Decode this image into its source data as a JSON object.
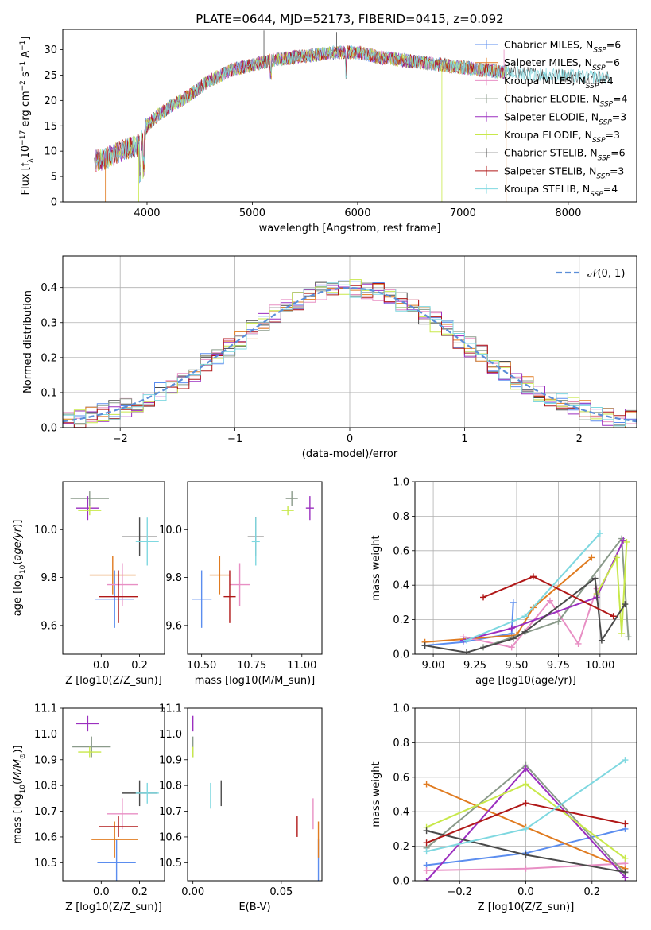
{
  "colors": [
    "#5b8def",
    "#e07b20",
    "#e88fc4",
    "#8a9a8a",
    "#9b2fbf",
    "#c8e84a",
    "#4a4a4a",
    "#b01818",
    "#7fd8e0"
  ],
  "chart_data": [
    {
      "id": "spectrum",
      "type": "line",
      "title": "PLATE=0644, MJD=52173, FIBERID=0415, z=0.092",
      "xlabel": "wavelength [Angstrom, rest frame]",
      "ylabel": "Flux [f_λ 10^-17 erg cm^-2 s^-1 A^-1]",
      "xlim": [
        3200,
        8650
      ],
      "ylim": [
        0,
        34
      ],
      "xticks": [
        4000,
        5000,
        6000,
        7000,
        8000
      ],
      "yticks": [
        0,
        5,
        10,
        15,
        20,
        25,
        30
      ],
      "grid": false,
      "legend_position": "top-right",
      "series": [
        {
          "name": "Chabrier MILES, N_SSP=6"
        },
        {
          "name": "Salpeter MILES, N_SSP=6"
        },
        {
          "name": "Kroupa MILES, N_SSP=4"
        },
        {
          "name": "Chabrier ELODIE, N_SSP=4"
        },
        {
          "name": "Salpeter ELODIE, N_SSP=3"
        },
        {
          "name": "Kroupa ELODIE, N_SSP=3"
        },
        {
          "name": "Chabrier STELIB, N_SSP=6"
        },
        {
          "name": "Salpeter STELIB, N_SSP=3"
        },
        {
          "name": "Kroupa STELIB, N_SSP=4"
        }
      ],
      "continuum": {
        "x": [
          3500,
          3600,
          3700,
          3800,
          3900,
          3950,
          4000,
          4100,
          4200,
          4400,
          4600,
          4800,
          5000,
          5200,
          5400,
          5600,
          5800,
          6000,
          6200,
          6400,
          6600,
          6800,
          7000,
          7200,
          7400
        ],
        "y": [
          8,
          8.5,
          9.5,
          10.5,
          11,
          12,
          15,
          17,
          18.5,
          21,
          24,
          26,
          27,
          28,
          28.5,
          29,
          29.5,
          29.5,
          28.5,
          28,
          27.5,
          27,
          26.5,
          26,
          25.5
        ]
      }
    },
    {
      "id": "histogram",
      "type": "bar",
      "xlabel": "(data-model)/error",
      "ylabel": "Normed distribution",
      "xlim": [
        -2.5,
        2.5
      ],
      "ylim": [
        0,
        0.49
      ],
      "xticks": [
        -2,
        -1,
        0,
        1,
        2
      ],
      "yticks": [
        0.0,
        0.1,
        0.2,
        0.3,
        0.4
      ],
      "grid": true,
      "legend_position": "top-right",
      "reference_curve": {
        "name": "N(0,1)",
        "mean": 0,
        "sigma": 1
      },
      "bin_width": 0.1
    },
    {
      "id": "age-vs-Z",
      "type": "scatter",
      "xlabel": "Z [log10(Z/Z_sun)]",
      "ylabel": "age [log10(age/yr)]",
      "xlim": [
        -0.2,
        0.33
      ],
      "ylim": [
        9.48,
        10.2
      ],
      "xticks": [
        0.0,
        0.2
      ],
      "yticks": [
        9.6,
        9.8,
        10.0
      ],
      "points": [
        {
          "x": 0.07,
          "y": 9.71,
          "xerr": 0.1,
          "yerr": 0.12
        },
        {
          "x": 0.06,
          "y": 9.81,
          "xerr": 0.12,
          "yerr": 0.08
        },
        {
          "x": 0.11,
          "y": 9.77,
          "xerr": 0.08,
          "yerr": 0.09
        },
        {
          "x": -0.06,
          "y": 10.13,
          "xerr": 0.1,
          "yerr": 0.03
        },
        {
          "x": -0.07,
          "y": 10.09,
          "xerr": 0.06,
          "yerr": 0.05
        },
        {
          "x": -0.06,
          "y": 10.08,
          "xerr": 0.06,
          "yerr": 0.02
        },
        {
          "x": 0.2,
          "y": 9.97,
          "xerr": 0.09,
          "yerr": 0.08
        },
        {
          "x": 0.09,
          "y": 9.72,
          "xerr": 0.1,
          "yerr": 0.11
        },
        {
          "x": 0.24,
          "y": 9.95,
          "xerr": 0.06,
          "yerr": 0.1
        }
      ]
    },
    {
      "id": "age-vs-mass",
      "type": "scatter",
      "xlabel": "mass [log10(M/M_sun)]",
      "ylabel": "",
      "xlim": [
        10.43,
        11.1
      ],
      "ylim": [
        9.48,
        10.2
      ],
      "xticks": [
        10.5,
        10.75,
        11.0
      ],
      "yticks": [
        9.6,
        9.8,
        10.0
      ],
      "points": [
        {
          "x": 10.5,
          "y": 9.71,
          "xerr": 0.05,
          "yerr": 0.12
        },
        {
          "x": 10.59,
          "y": 9.81,
          "xerr": 0.05,
          "yerr": 0.08
        },
        {
          "x": 10.69,
          "y": 9.77,
          "xerr": 0.05,
          "yerr": 0.09
        },
        {
          "x": 10.95,
          "y": 10.13,
          "xerr": 0.03,
          "yerr": 0.03
        },
        {
          "x": 11.04,
          "y": 10.09,
          "xerr": 0.02,
          "yerr": 0.05
        },
        {
          "x": 10.93,
          "y": 10.08,
          "xerr": 0.03,
          "yerr": 0.02
        },
        {
          "x": 10.77,
          "y": 9.97,
          "xerr": 0.04,
          "yerr": 0.08
        },
        {
          "x": 10.64,
          "y": 9.72,
          "xerr": 0.03,
          "yerr": 0.11
        },
        {
          "x": 10.77,
          "y": 9.95,
          "xerr": 0.02,
          "yerr": 0.1
        }
      ]
    },
    {
      "id": "weight-vs-age",
      "type": "line",
      "xlabel": "age [log10(age/yr)]",
      "ylabel": "mass weight",
      "xlim": [
        8.89,
        10.22
      ],
      "ylim": [
        0,
        1
      ],
      "xticks": [
        9.0,
        9.25,
        9.5,
        9.75,
        10.0
      ],
      "yticks": [
        0.0,
        0.2,
        0.4,
        0.6,
        0.8,
        1.0
      ],
      "grid": true,
      "series": [
        {
          "x": [
            8.95,
            9.18,
            9.47,
            9.48
          ],
          "y": [
            0.05,
            0.07,
            0.12,
            0.3
          ]
        },
        {
          "x": [
            8.95,
            9.5,
            9.6,
            9.95
          ],
          "y": [
            0.07,
            0.11,
            0.27,
            0.56
          ]
        },
        {
          "x": [
            9.18,
            9.47,
            9.7,
            9.87,
            9.98
          ],
          "y": [
            0.1,
            0.04,
            0.31,
            0.06,
            0.38
          ]
        },
        {
          "x": [
            9.3,
            9.75,
            10.13,
            10.17
          ],
          "y": [
            0.04,
            0.19,
            0.67,
            0.1
          ]
        },
        {
          "x": [
            9.18,
            9.47,
            9.98,
            10.14
          ],
          "y": [
            0.08,
            0.15,
            0.33,
            0.66
          ]
        },
        {
          "x": [
            9.98,
            10.1,
            10.13,
            10.16
          ],
          "y": [
            0.35,
            0.56,
            0.12,
            0.65
          ]
        },
        {
          "x": [
            8.95,
            9.2,
            9.48,
            9.55,
            9.97,
            10.01,
            10.15
          ],
          "y": [
            0.05,
            0.01,
            0.09,
            0.13,
            0.44,
            0.08,
            0.29
          ]
        },
        {
          "x": [
            9.3,
            9.6,
            10.08
          ],
          "y": [
            0.33,
            0.45,
            0.22
          ]
        },
        {
          "x": [
            9.2,
            9.55,
            10.0
          ],
          "y": [
            0.08,
            0.22,
            0.7
          ]
        }
      ]
    },
    {
      "id": "mass-vs-Z",
      "type": "scatter",
      "xlabel": "Z [log10(Z/Z_sun)]",
      "ylabel": "mass [log10(M/M_sun)]",
      "xlim": [
        -0.2,
        0.33
      ],
      "ylim": [
        10.43,
        11.1
      ],
      "xticks": [
        0.0,
        0.2
      ],
      "yticks": [
        10.5,
        10.6,
        10.7,
        10.8,
        10.9,
        11.0,
        11.1
      ],
      "points": [
        {
          "x": 0.08,
          "y": 10.5,
          "xerr": 0.1,
          "yerr": 0.09
        },
        {
          "x": 0.07,
          "y": 10.59,
          "xerr": 0.12,
          "yerr": 0.07
        },
        {
          "x": 0.11,
          "y": 10.69,
          "xerr": 0.08,
          "yerr": 0.06
        },
        {
          "x": -0.05,
          "y": 10.95,
          "xerr": 0.1,
          "yerr": 0.04
        },
        {
          "x": -0.07,
          "y": 11.04,
          "xerr": 0.06,
          "yerr": 0.03
        },
        {
          "x": -0.06,
          "y": 10.93,
          "xerr": 0.06,
          "yerr": 0.02
        },
        {
          "x": 0.2,
          "y": 10.77,
          "xerr": 0.09,
          "yerr": 0.05
        },
        {
          "x": 0.09,
          "y": 10.64,
          "xerr": 0.1,
          "yerr": 0.04
        },
        {
          "x": 0.24,
          "y": 10.77,
          "xerr": 0.06,
          "yerr": 0.04
        }
      ]
    },
    {
      "id": "mass-vs-EBV",
      "type": "scatter",
      "xlabel": "E(B-V)",
      "ylabel": "",
      "xlim": [
        -0.003,
        0.073
      ],
      "ylim": [
        10.43,
        11.1
      ],
      "xticks": [
        0.0,
        0.05
      ],
      "yticks": [
        10.5,
        10.6,
        10.7,
        10.8,
        10.9,
        11.0,
        11.1
      ],
      "points": [
        {
          "x": 0.071,
          "y": 10.5,
          "xerr": 0,
          "yerr": 0.09
        },
        {
          "x": 0.071,
          "y": 10.59,
          "xerr": 0,
          "yerr": 0.07
        },
        {
          "x": 0.068,
          "y": 10.69,
          "xerr": 0,
          "yerr": 0.06
        },
        {
          "x": 0.0,
          "y": 10.95,
          "xerr": 0,
          "yerr": 0.04
        },
        {
          "x": 0.0,
          "y": 11.04,
          "xerr": 0,
          "yerr": 0.03
        },
        {
          "x": 0.0,
          "y": 10.93,
          "xerr": 0,
          "yerr": 0.02
        },
        {
          "x": 0.016,
          "y": 10.77,
          "xerr": 0,
          "yerr": 0.05
        },
        {
          "x": 0.059,
          "y": 10.64,
          "xerr": 0,
          "yerr": 0.04
        },
        {
          "x": 0.01,
          "y": 10.76,
          "xerr": 0,
          "yerr": 0.05
        }
      ]
    },
    {
      "id": "weight-vs-Z",
      "type": "line",
      "xlabel": "Z [log10(Z/Z_sun)]",
      "ylabel": "mass weight",
      "xlim": [
        -0.335,
        0.335
      ],
      "ylim": [
        0,
        1
      ],
      "xticks": [
        -0.2,
        0.0,
        0.2
      ],
      "yticks": [
        0.0,
        0.2,
        0.4,
        0.6,
        0.8,
        1.0
      ],
      "grid": true,
      "series": [
        {
          "x": [
            -0.3,
            0.0,
            0.3
          ],
          "y": [
            0.09,
            0.16,
            0.3
          ]
        },
        {
          "x": [
            -0.3,
            0.0,
            0.3
          ],
          "y": [
            0.56,
            0.31,
            0.07
          ]
        },
        {
          "x": [
            -0.3,
            0.0,
            0.3
          ],
          "y": [
            0.06,
            0.07,
            0.1
          ]
        },
        {
          "x": [
            -0.3,
            0.0,
            0.3
          ],
          "y": [
            0.19,
            0.67,
            0.04
          ]
        },
        {
          "x": [
            -0.3,
            0.0,
            0.3
          ],
          "y": [
            0.0,
            0.65,
            0.02
          ]
        },
        {
          "x": [
            -0.3,
            0.0,
            0.3
          ],
          "y": [
            0.31,
            0.56,
            0.13
          ]
        },
        {
          "x": [
            -0.3,
            0.0,
            0.3
          ],
          "y": [
            0.29,
            0.15,
            0.05
          ]
        },
        {
          "x": [
            -0.3,
            0.0,
            0.3
          ],
          "y": [
            0.22,
            0.45,
            0.33
          ]
        },
        {
          "x": [
            -0.3,
            0.0,
            0.3
          ],
          "y": [
            0.17,
            0.3,
            0.7
          ]
        }
      ]
    }
  ]
}
